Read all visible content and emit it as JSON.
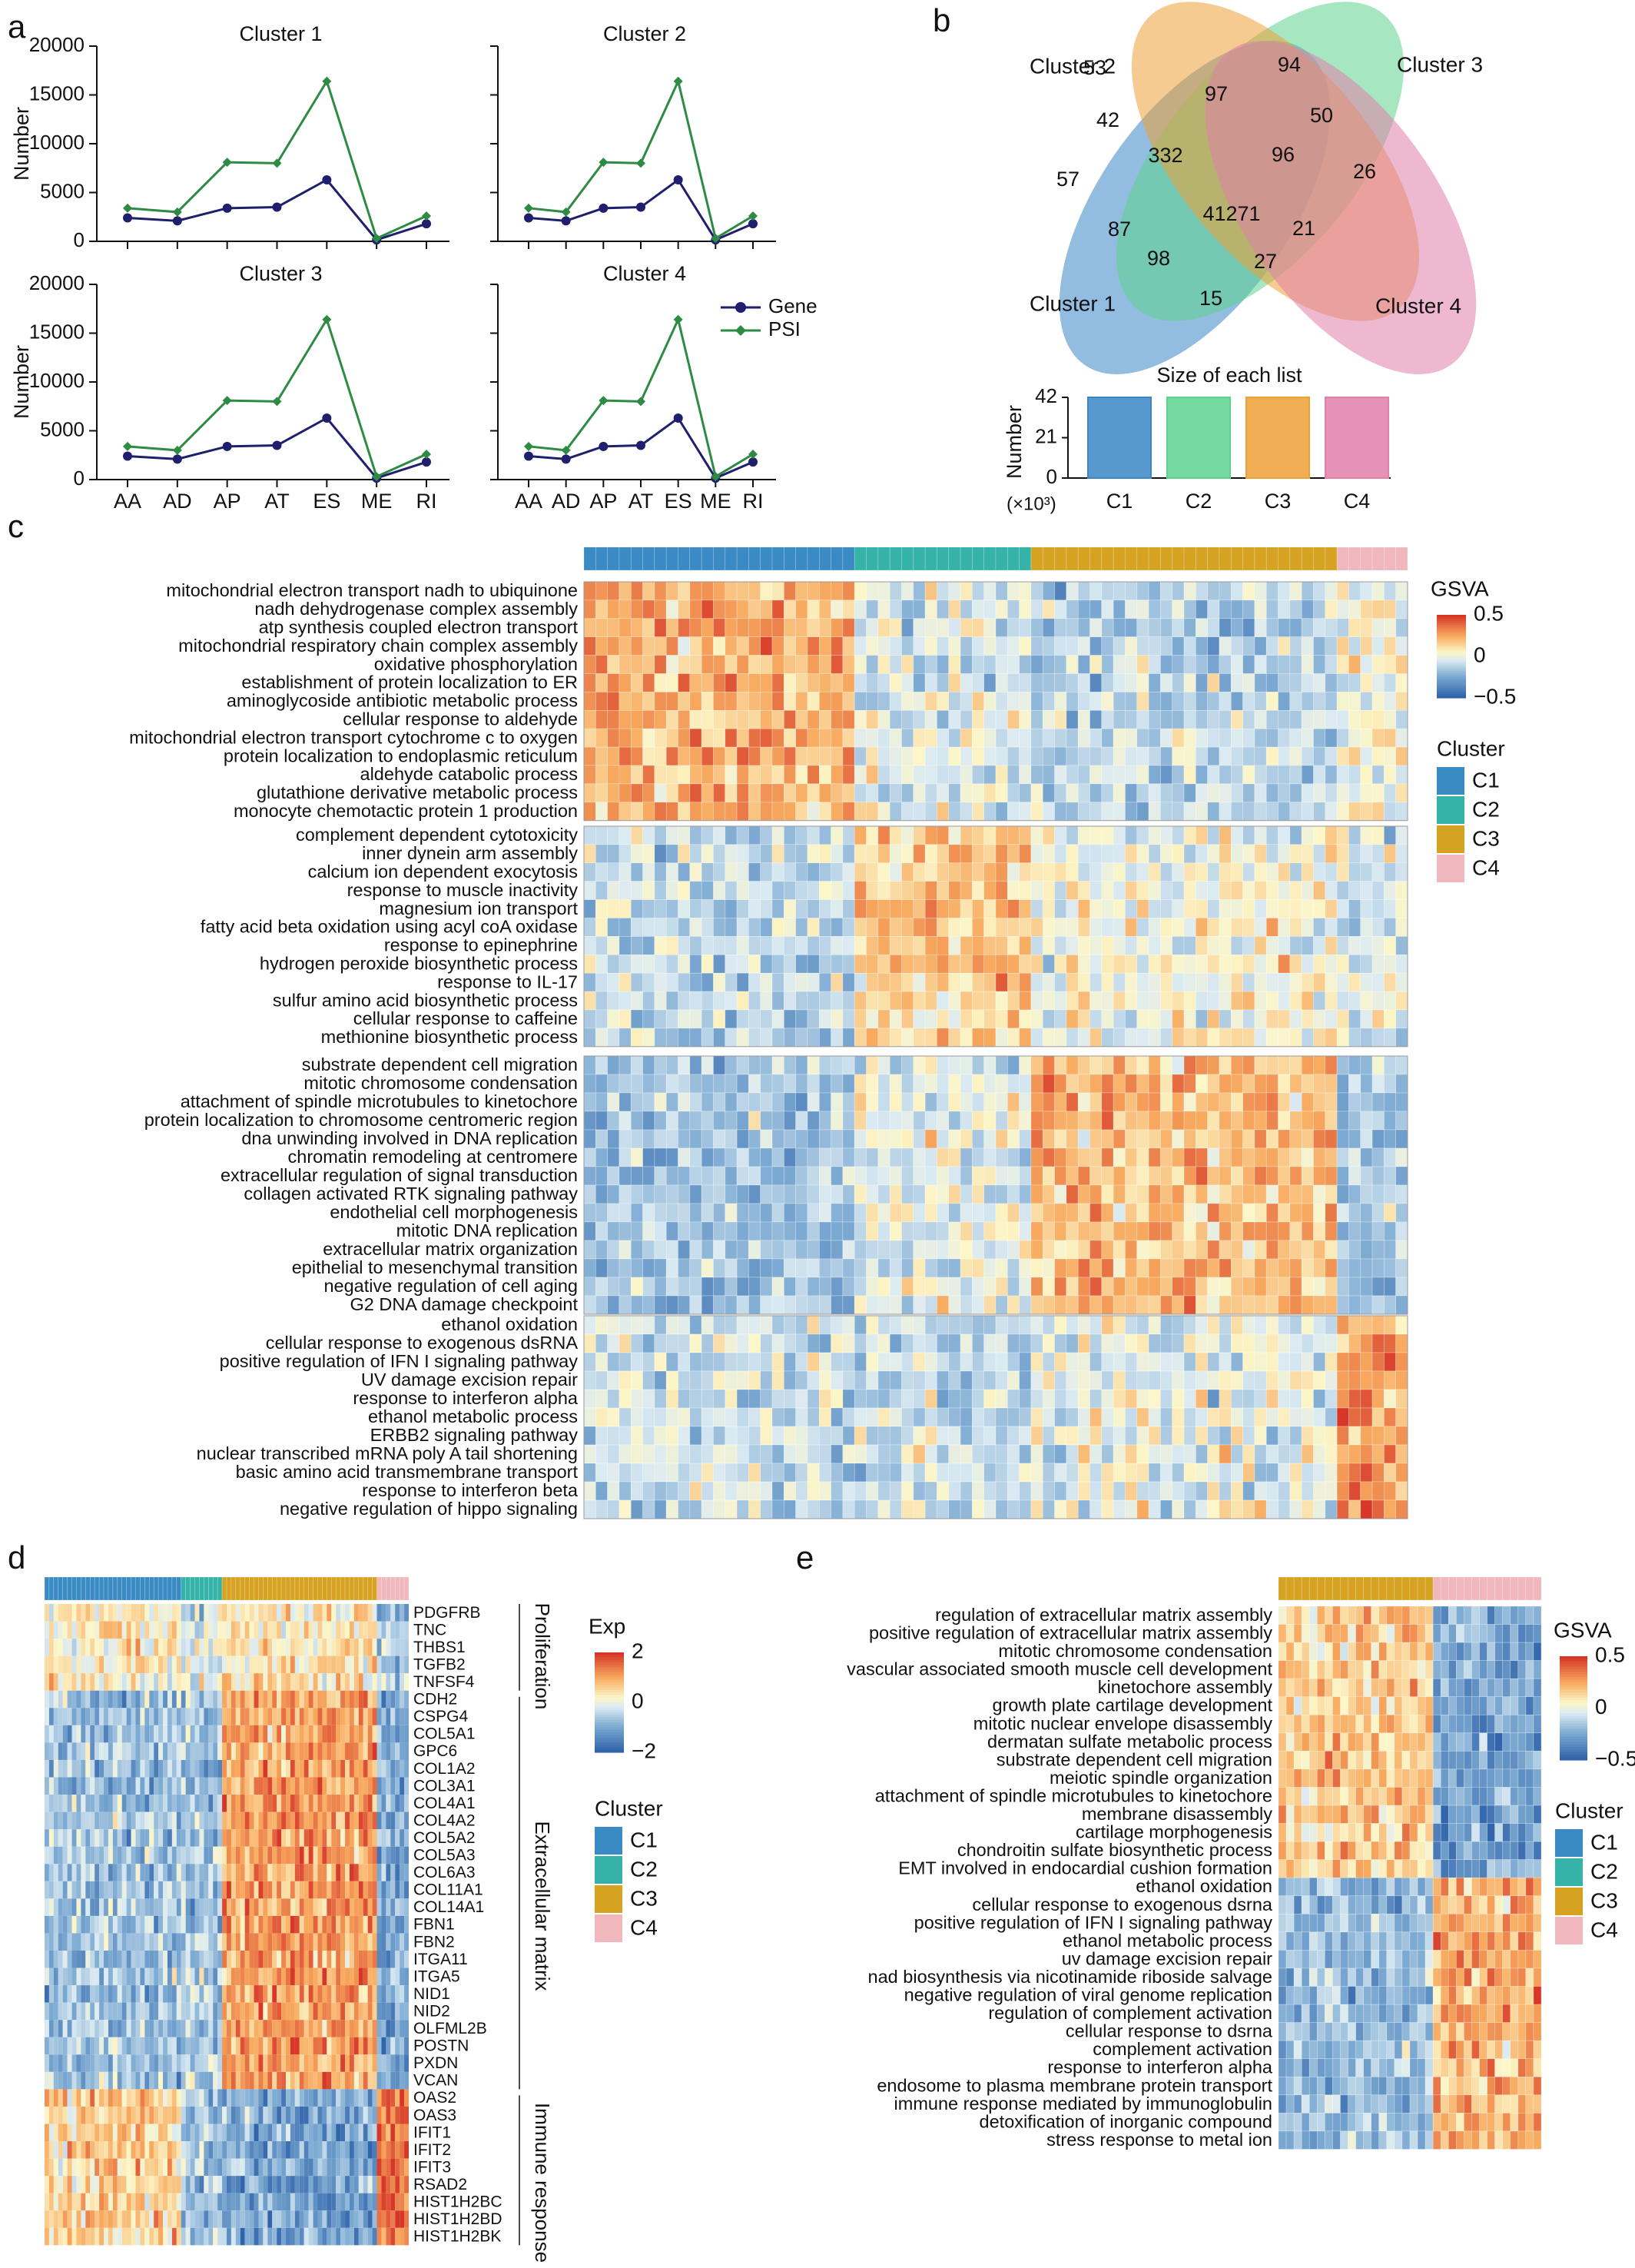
{
  "panels": {
    "a": "a",
    "b": "b",
    "c": "c",
    "d": "d",
    "e": "e"
  },
  "chart_data": [
    {
      "type": "line",
      "panel": "a",
      "ylabel": "Number",
      "categories": [
        "AA",
        "AD",
        "AP",
        "AT",
        "ES",
        "ME",
        "RI"
      ],
      "yticks": [
        "0",
        "5000",
        "10000",
        "15000",
        "20000"
      ],
      "ylim": [
        0,
        20000
      ],
      "legend": [
        "Gene",
        "PSI"
      ],
      "legend_position": "right",
      "colors": {
        "Gene": "#1f1f6e",
        "PSI": "#2e8b43"
      },
      "subplots": [
        {
          "title": "Cluster 1",
          "series": [
            {
              "name": "Gene",
              "values": [
                2400,
                2100,
                3400,
                3500,
                6300,
                150,
                1800
              ]
            },
            {
              "name": "PSI",
              "values": [
                3400,
                3000,
                8100,
                8000,
                16400,
                300,
                2600
              ]
            }
          ]
        },
        {
          "title": "Cluster 2",
          "series": [
            {
              "name": "Gene",
              "values": [
                2400,
                2100,
                3400,
                3500,
                6300,
                150,
                1800
              ]
            },
            {
              "name": "PSI",
              "values": [
                3400,
                3000,
                8100,
                8000,
                16400,
                300,
                2600
              ]
            }
          ]
        },
        {
          "title": "Cluster 3",
          "series": [
            {
              "name": "Gene",
              "values": [
                2400,
                2100,
                3400,
                3500,
                6300,
                150,
                1800
              ]
            },
            {
              "name": "PSI",
              "values": [
                3400,
                3000,
                8100,
                8000,
                16400,
                300,
                2600
              ]
            }
          ]
        },
        {
          "title": "Cluster 4",
          "series": [
            {
              "name": "Gene",
              "values": [
                2400,
                2100,
                3400,
                3500,
                6300,
                150,
                1800
              ]
            },
            {
              "name": "PSI",
              "values": [
                3400,
                3000,
                8100,
                8000,
                16400,
                300,
                2600
              ]
            }
          ]
        }
      ]
    },
    {
      "type": "venn",
      "panel": "b",
      "sets": [
        {
          "name": "Cluster 1",
          "color": "#3a86c6"
        },
        {
          "name": "Cluster 2",
          "color": "#5cd48e"
        },
        {
          "name": "Cluster 3",
          "color": "#eda036"
        },
        {
          "name": "Cluster 4",
          "color": "#e07fa9"
        }
      ],
      "regions": [
        "53",
        "94",
        "57",
        "42",
        "97",
        "50",
        "26",
        "332",
        "96",
        "41271",
        "87",
        "21",
        "98",
        "27",
        "15"
      ]
    },
    {
      "type": "bar",
      "panel": "b",
      "title": "Size of each list",
      "ylabel": "Number",
      "unit": "(×10³)",
      "categories": [
        "C1",
        "C2",
        "C3",
        "C4"
      ],
      "yticks": [
        "0",
        "21",
        "42"
      ],
      "ylim": [
        0,
        42
      ],
      "values": [
        42,
        42,
        42,
        42
      ],
      "colors": [
        "#3a86c6",
        "#5cd48e",
        "#eda036",
        "#e07fa9"
      ]
    },
    {
      "type": "heatmap",
      "panel": "c",
      "legend_title": "GSVA",
      "colorbar_ticks": [
        "0.5",
        "0",
        "−0.5"
      ],
      "cluster_title": "Cluster",
      "clusters": [
        {
          "label": "C1",
          "color": "#3a8ac4"
        },
        {
          "label": "C2",
          "color": "#36b3a8"
        },
        {
          "label": "C3",
          "color": "#d6a222"
        },
        {
          "label": "C4",
          "color": "#f0b8bd"
        }
      ],
      "rows": [
        [
          "mitochondrial electron transport nadh to ubiquinone",
          "nadh dehydrogenase complex assembly",
          "atp synthesis coupled electron transport",
          "mitochondrial respiratory chain complex assembly",
          "oxidative phosphorylation",
          "establishment of protein localization to ER",
          "aminoglycoside antibiotic metabolic process",
          "cellular response to aldehyde",
          "mitochondrial electron transport cytochrome c to oxygen",
          "protein localization to endoplasmic reticulum",
          "aldehyde catabolic process",
          "glutathione derivative metabolic process",
          "monocyte chemotactic protein 1 production"
        ],
        [
          "complement dependent cytotoxicity",
          "inner dynein arm assembly",
          "calcium ion dependent exocytosis",
          "response to muscle inactivity",
          "magnesium ion transport",
          "fatty acid beta oxidation using acyl coA oxidase",
          "response to epinephrine",
          "hydrogen peroxide biosynthetic process",
          "response to IL-17",
          "sulfur amino acid biosynthetic process",
          "cellular response to caffeine",
          "methionine biosynthetic process"
        ],
        [
          "substrate dependent cell migration",
          "mitotic chromosome condensation",
          "attachment of spindle microtubules to kinetochore",
          "protein localization to chromosome centromeric region",
          "dna unwinding involved in DNA replication",
          "chromatin remodeling at centromere",
          "extracellular regulation of signal transduction",
          "collagen activated RTK signaling pathway",
          "endothelial cell morphogenesis",
          "mitotic DNA replication",
          "extracellular matrix organization",
          "epithelial to mesenchymal transition",
          "negative regulation of cell aging",
          "G2 DNA damage checkpoint"
        ],
        [
          "ethanol oxidation",
          "cellular response to exogenous dsRNA",
          "positive regulation of IFN I signaling pathway",
          "UV damage excision repair",
          "response to interferon alpha",
          "ethanol metabolic process",
          "ERBB2 signaling pathway",
          "nuclear transcribed mRNA poly A tail shortening",
          "basic amino acid transmembrane transport",
          "response to interferon beta",
          "negative regulation of hippo signaling"
        ]
      ]
    },
    {
      "type": "heatmap",
      "panel": "d",
      "legend_title": "Exp",
      "colorbar_ticks": [
        "2",
        "0",
        "−2"
      ],
      "cluster_title": "Cluster",
      "clusters": [
        {
          "label": "C1",
          "color": "#3a8ac4"
        },
        {
          "label": "C2",
          "color": "#36b3a8"
        },
        {
          "label": "C3",
          "color": "#d6a222"
        },
        {
          "label": "C4",
          "color": "#f0b8bd"
        }
      ],
      "groups": [
        "Proliferation",
        "Extracellular matrix",
        "Immune response"
      ],
      "rows": [
        "PDGFRB",
        "TNC",
        "THBS1",
        "TGFB2",
        "TNFSF4",
        "CDH2",
        "CSPG4",
        "COL5A1",
        "GPC6",
        "COL1A2",
        "COL3A1",
        "COL4A1",
        "COL4A2",
        "COL5A2",
        "COL5A3",
        "COL6A3",
        "COL11A1",
        "COL14A1",
        "FBN1",
        "FBN2",
        "ITGA11",
        "ITGA5",
        "NID1",
        "NID2",
        "OLFML2B",
        "POSTN",
        "PXDN",
        "VCAN",
        "OAS2",
        "OAS3",
        "IFIT1",
        "IFIT2",
        "IFIT3",
        "RSAD2",
        "HIST1H2BC",
        "HIST1H2BD",
        "HIST1H2BK"
      ]
    },
    {
      "type": "heatmap",
      "panel": "e",
      "legend_title": "GSVA",
      "colorbar_ticks": [
        "0.5",
        "0",
        "−0.5"
      ],
      "cluster_title": "Cluster",
      "clusters": [
        {
          "label": "C1",
          "color": "#3a8ac4"
        },
        {
          "label": "C2",
          "color": "#36b3a8"
        },
        {
          "label": "C3",
          "color": "#d6a222"
        },
        {
          "label": "C4",
          "color": "#f0b8bd"
        }
      ],
      "rows": [
        "regulation of extracellular matrix assembly",
        "positive regulation of extracellular matrix assembly",
        "mitotic chromosome condensation",
        "vascular associated smooth muscle cell development",
        "kinetochore assembly",
        "growth plate cartilage development",
        "mitotic nuclear envelope disassembly",
        "dermatan sulfate metabolic process",
        "substrate dependent cell migration",
        "meiotic spindle organization",
        "attachment of spindle microtubules to kinetochore",
        "membrane disassembly",
        "cartilage morphogenesis",
        "chondroitin sulfate biosynthetic process",
        "EMT involved in endocardial cushion formation",
        "ethanol oxidation",
        "cellular response to exogenous dsrna",
        "positive regulation of IFN I signaling pathway",
        "ethanol metabolic process",
        "uv damage excision repair",
        "nad biosynthesis via nicotinamide riboside salvage",
        "negative regulation of viral genome replication",
        "regulation of complement activation",
        "cellular response to dsrna",
        "complement activation",
        "response to interferon alpha",
        "endosome to plasma membrane protein transport",
        "immune response mediated by immunoglobulin",
        "detoxification of inorganic compound",
        "stress response to metal ion"
      ]
    }
  ]
}
